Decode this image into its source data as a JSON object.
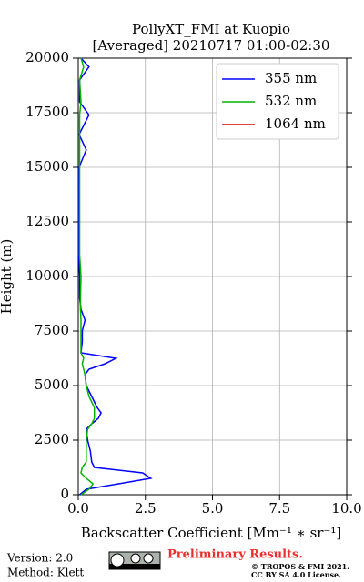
{
  "chart_data": {
    "type": "line",
    "title": "PollyXT_FMI at Kuopio",
    "subtitle": "[Averaged] 20210717 01:00-02:30",
    "xlabel": "Backscatter Coefficient [Mm⁻¹ ∗ sr⁻¹]",
    "ylabel": "Height (m)",
    "y": [
      0,
      250,
      500,
      750,
      1000,
      1250,
      1500,
      2000,
      2500,
      3000,
      3250,
      3500,
      3750,
      4000,
      4500,
      5000,
      5500,
      5750,
      6000,
      6250,
      6500,
      7000,
      7500,
      8000,
      8500,
      9000,
      10000,
      11000,
      12000,
      13000,
      14000,
      15000,
      15800,
      16500,
      17400,
      18000,
      19000,
      19600,
      20000
    ],
    "series": [
      {
        "name": "355 nm",
        "color": "#0000ff",
        "values": [
          0.05,
          0.3,
          1.5,
          2.7,
          2.4,
          0.6,
          0.5,
          0.45,
          0.35,
          0.3,
          0.5,
          0.75,
          0.85,
          0.7,
          0.5,
          0.3,
          0.25,
          0.4,
          1.0,
          1.4,
          0.1,
          0.15,
          0.15,
          0.25,
          0.1,
          0.05,
          0.05,
          0.02,
          0.02,
          0.02,
          0.02,
          0.03,
          0.3,
          0.03,
          0.4,
          0.05,
          0.05,
          0.4,
          0.1
        ]
      },
      {
        "name": "532 nm",
        "color": "#00b400",
        "values": [
          0.1,
          0.4,
          0.55,
          0.3,
          0.1,
          0.15,
          0.3,
          0.3,
          0.3,
          0.35,
          0.5,
          0.6,
          0.6,
          0.6,
          0.4,
          0.3,
          0.25,
          0.2,
          0.15,
          0.2,
          0.1,
          0.1,
          0.1,
          0.1,
          0.08,
          0.08,
          0.1,
          0.05,
          0.05,
          0.05,
          0.05,
          0.05,
          0.05,
          0.05,
          0.05,
          0.1,
          0.05,
          0.2,
          0.1
        ]
      },
      {
        "name": "1064 nm",
        "color": "#e00000",
        "values": [
          null,
          null,
          null,
          null,
          null,
          null,
          null,
          null,
          null,
          null,
          null,
          null,
          null,
          null,
          null,
          null,
          null,
          null,
          null,
          null,
          null,
          null,
          null,
          null,
          null,
          null,
          null,
          null,
          null,
          null,
          null,
          null,
          null,
          null,
          null,
          null,
          null,
          null,
          null
        ]
      }
    ],
    "xlim": [
      0,
      10
    ],
    "xticks": [
      {
        "value": 0,
        "label": "0.0"
      },
      2.5,
      {
        "value": 5,
        "label": "5.0"
      },
      7.5,
      {
        "value": 10,
        "label": "10.0"
      }
    ],
    "ylim": [
      0,
      20000
    ],
    "yticks": [
      0,
      2500,
      5000,
      7500,
      10000,
      12500,
      15000,
      17500,
      20000
    ],
    "grid": true,
    "legend": "upper right"
  },
  "footer": {
    "version": "Version: 2.0",
    "method": "Method: Klett",
    "notice": "Preliminary Results.",
    "copyright": "© TROPOS & FMI 2021.",
    "license": "CC BY SA 4.0 License."
  }
}
